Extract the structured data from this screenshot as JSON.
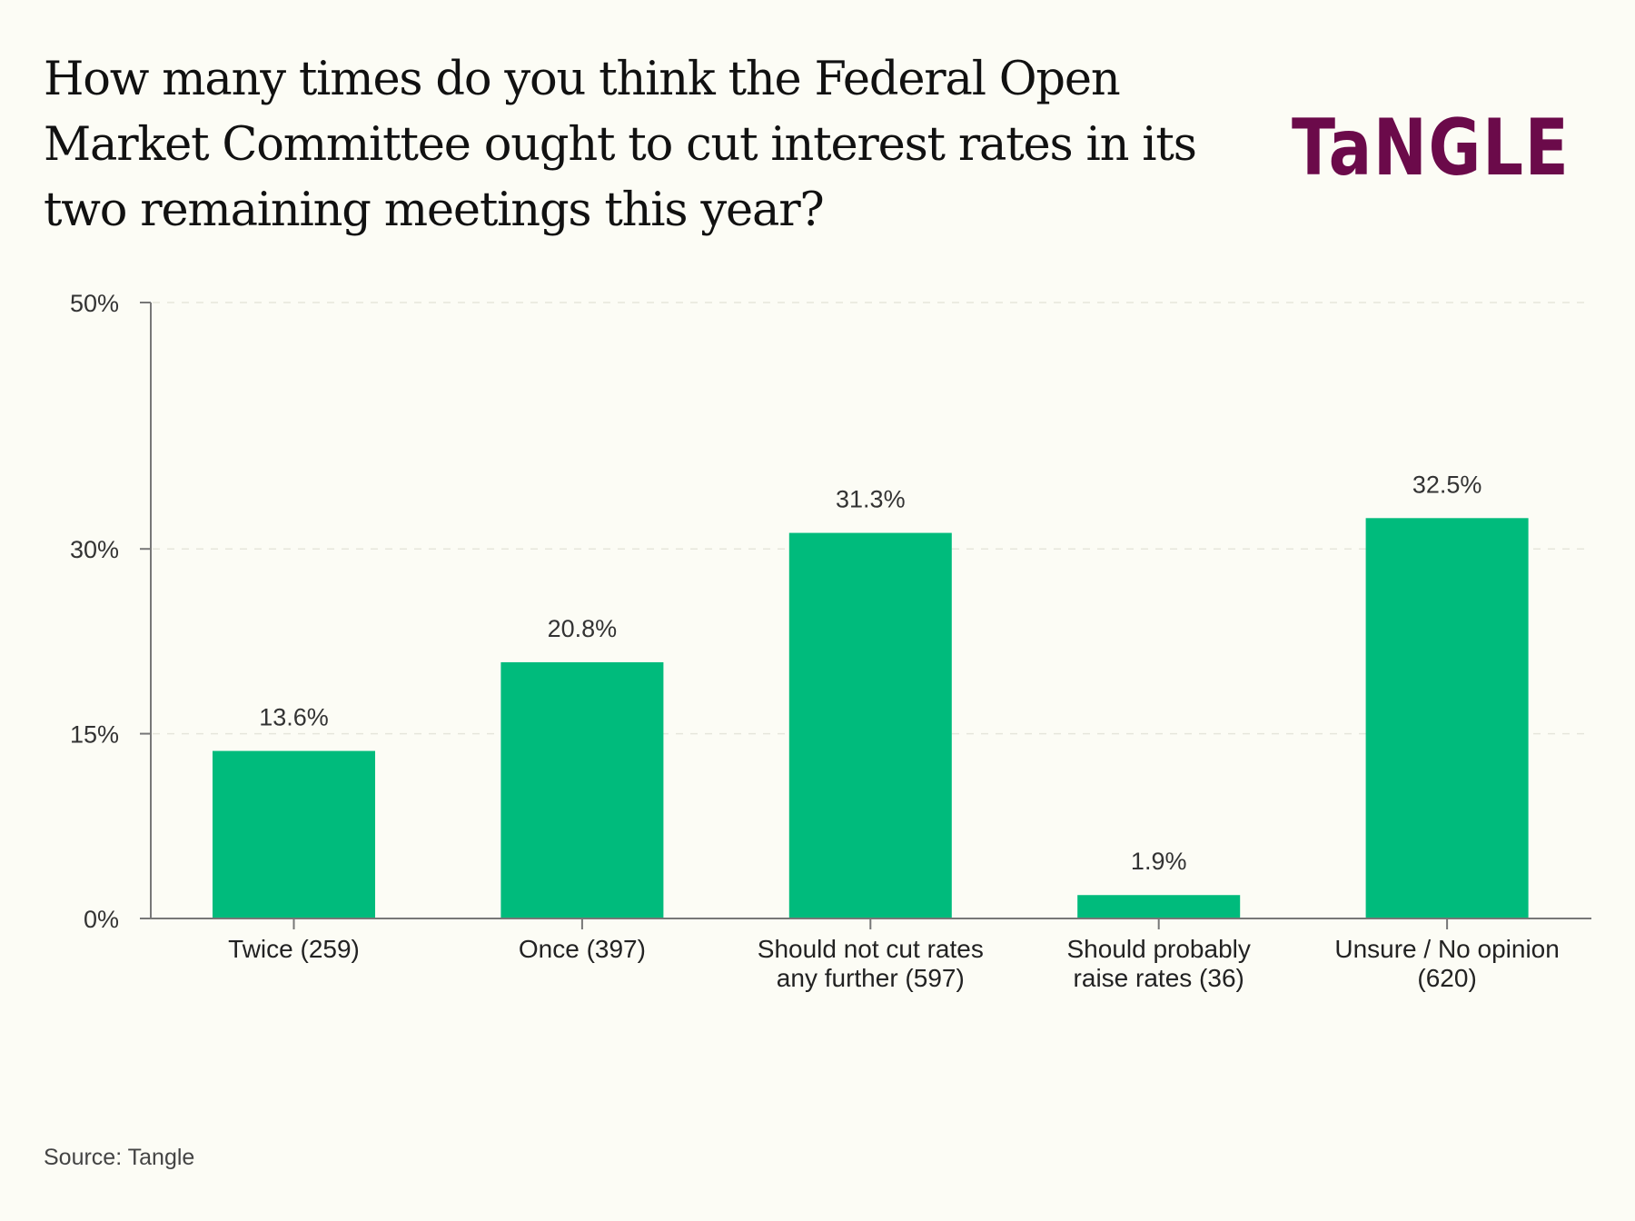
{
  "header": {
    "title_lines": [
      "How many times do you think the Federal Open",
      "Market Committee ought to cut interest rates in its",
      "two remaining meetings this year?"
    ],
    "logo_text": "TaNGLE"
  },
  "footer": {
    "source": "Source: Tangle"
  },
  "colors": {
    "bar": "#00bb7c",
    "logo": "#6b0a4a",
    "background": "#fcfcf5",
    "axis": "#777777"
  },
  "chart_data": {
    "type": "bar",
    "title": "How many times do you think the Federal Open Market Committee ought to cut interest rates in its two remaining meetings this year?",
    "categories": [
      [
        "Twice (259)"
      ],
      [
        "Once (397)"
      ],
      [
        "Should not cut rates",
        "any further (597)"
      ],
      [
        "Should probably",
        "raise rates (36)"
      ],
      [
        "Unsure / No opinion",
        "(620)"
      ]
    ],
    "values": [
      13.6,
      20.8,
      31.3,
      1.9,
      32.5
    ],
    "value_labels": [
      "13.6%",
      "20.8%",
      "31.3%",
      "1.9%",
      "32.5%"
    ],
    "yticks": [
      0,
      15,
      30,
      50
    ],
    "ytick_labels": [
      "0%",
      "15%",
      "30%",
      "50%"
    ],
    "ylim": [
      0,
      50
    ],
    "xlabel": "",
    "ylabel": "",
    "grid": true,
    "legend": "none"
  }
}
